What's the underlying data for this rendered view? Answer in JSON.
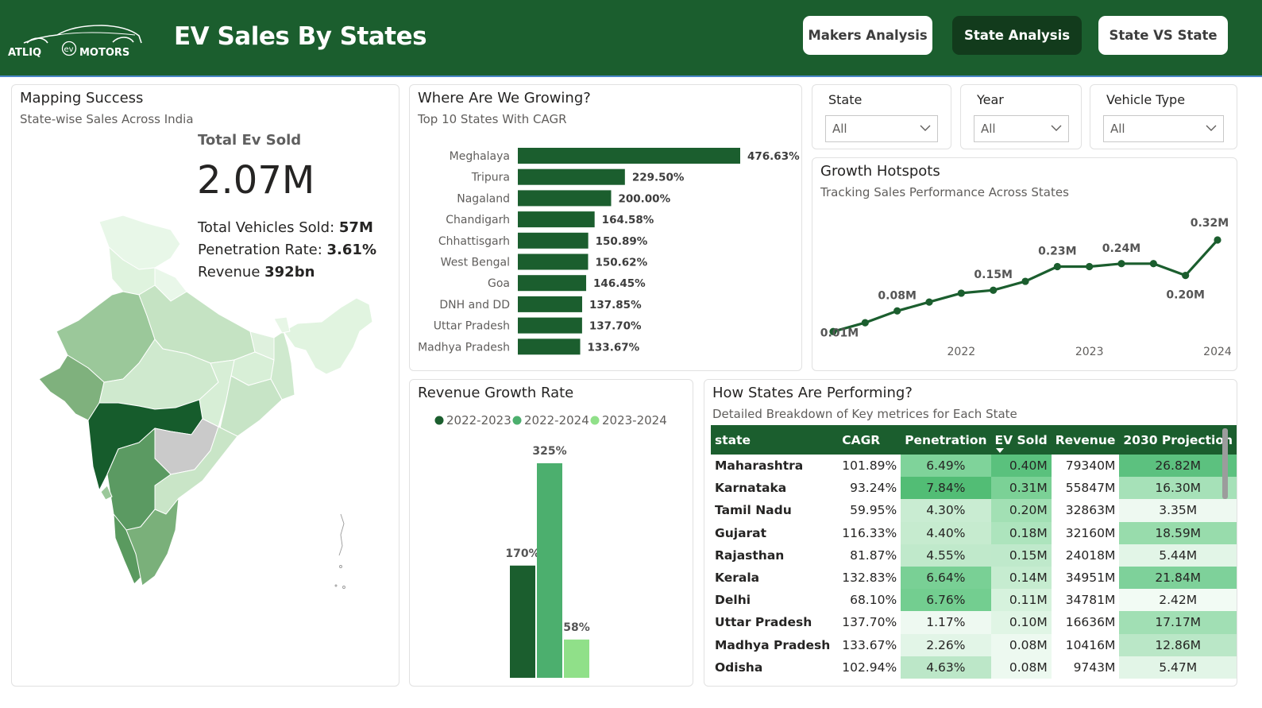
{
  "header": {
    "logo_text_left": "ATLIQ",
    "logo_text_ev": "ev",
    "logo_text_right": "MOTORS",
    "title": "EV Sales By States",
    "nav": [
      {
        "label": "Makers Analysis",
        "active": false
      },
      {
        "label": "State Analysis",
        "active": true
      },
      {
        "label": "State VS State",
        "active": false
      }
    ],
    "colors": {
      "bar": "#1b5e2e",
      "active_button": "#123b1c"
    }
  },
  "map_card": {
    "title": "Mapping Success",
    "subtitle": "State-wise Sales Across India",
    "kpi_label": "Total Ev Sold",
    "kpi_value": "2.07M",
    "lines": [
      {
        "label": "Total Vehicles Sold: ",
        "value": "57M"
      },
      {
        "label": "Penetration Rate: ",
        "value": "3.61%"
      },
      {
        "label": "Revenue ",
        "value": "392bn"
      }
    ]
  },
  "growing_card": {
    "title": "Where Are We Growing?",
    "subtitle": "Top 10 States With CAGR"
  },
  "slicers": [
    {
      "title": "State",
      "value": "All"
    },
    {
      "title": "Year",
      "value": "All"
    },
    {
      "title": "Vehicle Type",
      "value": "All"
    }
  ],
  "hotspots_card": {
    "title": "Growth Hotspots",
    "subtitle": "Tracking Sales Performance Across States"
  },
  "revenue_card": {
    "title": "Revenue Growth Rate"
  },
  "performance_card": {
    "title": "How States Are Performing?",
    "subtitle": "Detailed Breakdown of Key metrices for Each State",
    "columns": [
      "state",
      "CAGR",
      "Penetration",
      "EV Sold",
      "Revenue",
      "2030 Projection"
    ],
    "rows": [
      [
        "Maharashtra",
        "101.89%",
        "6.49%",
        "0.40M",
        "79340M",
        "26.82M"
      ],
      [
        "Karnataka",
        "93.24%",
        "7.84%",
        "0.31M",
        "55847M",
        "16.30M"
      ],
      [
        "Tamil Nadu",
        "59.95%",
        "4.30%",
        "0.20M",
        "32863M",
        "3.35M"
      ],
      [
        "Gujarat",
        "116.33%",
        "4.40%",
        "0.18M",
        "32160M",
        "18.59M"
      ],
      [
        "Rajasthan",
        "81.87%",
        "4.55%",
        "0.15M",
        "24018M",
        "5.44M"
      ],
      [
        "Kerala",
        "132.83%",
        "6.64%",
        "0.14M",
        "34951M",
        "21.84M"
      ],
      [
        "Delhi",
        "68.10%",
        "6.76%",
        "0.11M",
        "34781M",
        "2.42M"
      ],
      [
        "Uttar Pradesh",
        "137.70%",
        "1.17%",
        "0.10M",
        "16636M",
        "17.17M"
      ],
      [
        "Madhya Pradesh",
        "133.67%",
        "2.26%",
        "0.08M",
        "10416M",
        "12.86M"
      ],
      [
        "Odisha",
        "102.94%",
        "4.63%",
        "0.08M",
        "9743M",
        "5.47M"
      ]
    ]
  },
  "chart_data": [
    {
      "id": "cagr",
      "type": "bar",
      "orientation": "horizontal",
      "categories": [
        "Meghalaya",
        "Tripura",
        "Nagaland",
        "Chandigarh",
        "Chhattisgarh",
        "West Bengal",
        "Goa",
        "DNH and DD",
        "Uttar Pradesh",
        "Madhya Pradesh"
      ],
      "values": [
        476.63,
        229.5,
        200.0,
        164.58,
        150.89,
        150.62,
        146.45,
        137.85,
        137.7,
        133.67
      ],
      "labels": [
        "476.63%",
        "229.50%",
        "200.00%",
        "164.58%",
        "150.89%",
        "150.62%",
        "146.45%",
        "137.85%",
        "137.70%",
        "133.67%"
      ],
      "color": "#1b5e2e"
    },
    {
      "id": "hotspots",
      "type": "line",
      "x": [
        2021.0,
        2021.25,
        2021.5,
        2021.75,
        2022.0,
        2022.25,
        2022.5,
        2022.75,
        2023.0,
        2023.25,
        2023.5,
        2023.75,
        2024.0
      ],
      "y": [
        0.01,
        0.04,
        0.08,
        0.11,
        0.14,
        0.15,
        0.18,
        0.23,
        0.23,
        0.24,
        0.24,
        0.2,
        0.32
      ],
      "point_labels": [
        {
          "index": 0,
          "text": "0.01M"
        },
        {
          "index": 2,
          "text": "0.08M"
        },
        {
          "index": 5,
          "text": "0.15M"
        },
        {
          "index": 7,
          "text": "0.23M"
        },
        {
          "index": 9,
          "text": "0.24M"
        },
        {
          "index": 11,
          "text": "0.20M"
        },
        {
          "index": 12,
          "text": "0.32M"
        }
      ],
      "x_ticks": [
        "2022",
        "2023",
        "2024"
      ],
      "color": "#1b5e2e"
    },
    {
      "id": "revenue_growth",
      "type": "bar",
      "series": [
        {
          "name": "2022-2023",
          "values": [
            170
          ],
          "label": "170%",
          "color": "#1b5e2e"
        },
        {
          "name": "2022-2024",
          "values": [
            325
          ],
          "label": "325%",
          "color": "#4caf6e"
        },
        {
          "name": "2023-2024",
          "values": [
            58
          ],
          "label": "58%",
          "color": "#90e089"
        }
      ]
    }
  ]
}
